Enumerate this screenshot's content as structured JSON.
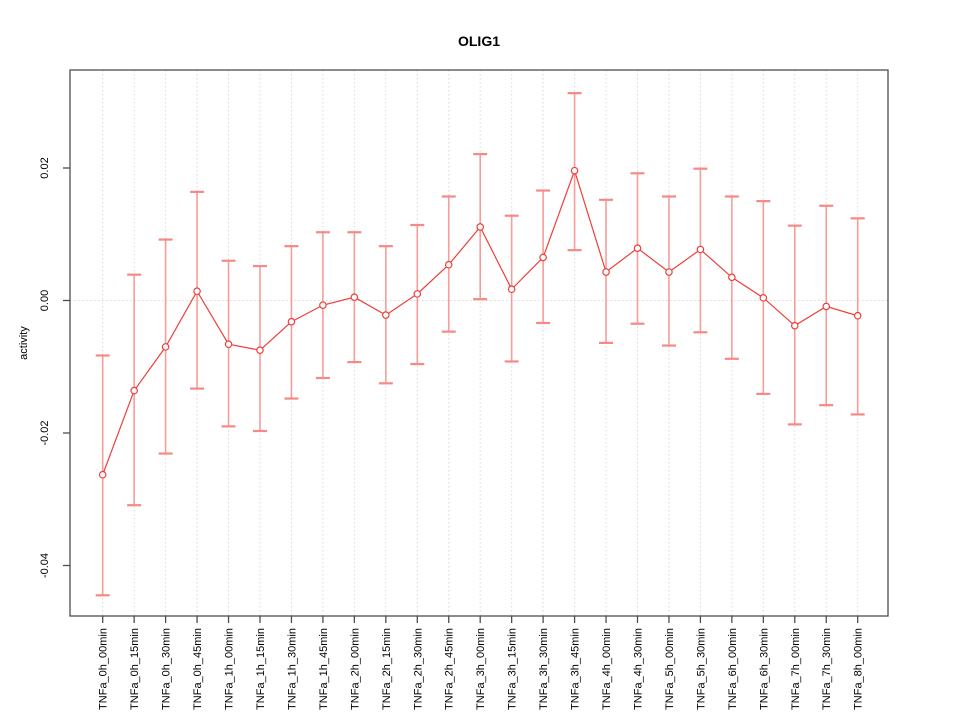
{
  "chart_data": {
    "type": "line",
    "title": "OLIG1",
    "xlabel": "",
    "ylabel": "activity",
    "legend": "none",
    "grid": "dotted light-gray vertical line per category; dotted horizontal line at y=0",
    "categories": [
      "TNFa_0h_00min",
      "TNFa_0h_15min",
      "TNFa_0h_30min",
      "TNFa_0h_45min",
      "TNFa_1h_00min",
      "TNFa_1h_15min",
      "TNFa_1h_30min",
      "TNFa_1h_45min",
      "TNFa_2h_00min",
      "TNFa_2h_15min",
      "TNFa_2h_30min",
      "TNFa_2h_45min",
      "TNFa_3h_00min",
      "TNFa_3h_15min",
      "TNFa_3h_30min",
      "TNFa_3h_45min",
      "TNFa_4h_00min",
      "TNFa_4h_30min",
      "TNFa_5h_00min",
      "TNFa_5h_30min",
      "TNFa_6h_00min",
      "TNFa_6h_30min",
      "TNFa_7h_00min",
      "TNFa_7h_30min",
      "TNFa_8h_00min"
    ],
    "series": [
      {
        "name": "activity",
        "marker": "open-circle",
        "values": [
          -0.0263,
          -0.0136,
          -0.007,
          0.0014,
          -0.0066,
          -0.0075,
          -0.0032,
          -0.0007,
          0.0005,
          -0.0022,
          0.001,
          0.0054,
          0.0111,
          0.0017,
          0.0065,
          0.0196,
          0.0043,
          0.0079,
          0.0043,
          0.0077,
          0.0035,
          0.0004,
          -0.0038,
          -0.0009,
          -0.0023
        ],
        "upper": [
          -0.0083,
          0.0039,
          0.0092,
          0.0164,
          0.006,
          0.0052,
          0.0082,
          0.0103,
          0.0103,
          0.0082,
          0.0114,
          0.0157,
          0.0221,
          0.0128,
          0.0166,
          0.0313,
          0.0152,
          0.0192,
          0.0157,
          0.0199,
          0.0157,
          0.015,
          0.0113,
          0.0143,
          0.0124
        ],
        "lower": [
          -0.0445,
          -0.0309,
          -0.0231,
          -0.0133,
          -0.019,
          -0.0197,
          -0.0148,
          -0.0117,
          -0.0093,
          -0.0125,
          -0.0096,
          -0.0047,
          0.0002,
          -0.0092,
          -0.0034,
          0.0076,
          -0.0064,
          -0.0035,
          -0.0068,
          -0.0048,
          -0.0088,
          -0.0141,
          -0.0187,
          -0.0158,
          -0.0172
        ]
      }
    ],
    "yticks": [
      0.02,
      0.0,
      -0.02,
      -0.04
    ],
    "ytick_labels": [
      "0.02",
      "0.00",
      "-0.02",
      "-0.04"
    ],
    "ylim": [
      -0.0476,
      0.0348
    ],
    "colors": {
      "line": "#ee3f3b",
      "marker": "#ee3f3b",
      "error_bar": "#f79d99",
      "error_cap": "#f58985",
      "grid": "#d9d9d9",
      "box": "#4d4d4d",
      "text": "#000000",
      "background": "#ffffff"
    }
  }
}
